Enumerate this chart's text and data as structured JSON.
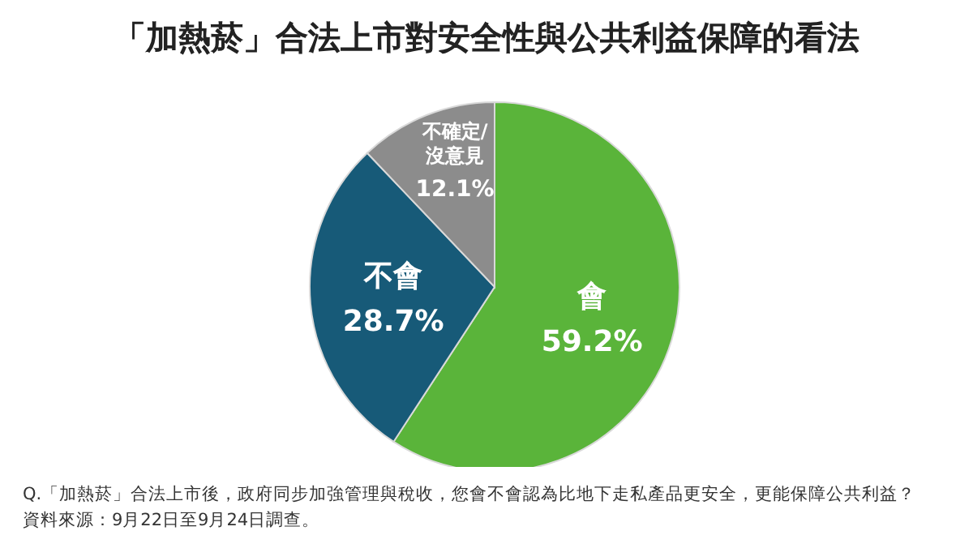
{
  "chart_data": {
    "type": "pie",
    "title": "「加熱菸」合法上市對安全性與公共利益保障的看法",
    "categories": [
      "會",
      "不會",
      "不確定/沒意見"
    ],
    "values": [
      59.2,
      28.7,
      12.1
    ],
    "colors": [
      "#5ab43a",
      "#175a78",
      "#8c8c8c"
    ],
    "value_labels": [
      "59.2%",
      "28.7%",
      "12.1%"
    ],
    "legend": false,
    "annotations": [
      "Q.「加熱菸」合法上市後，政府同步加強管理與稅收，您會不會認為比地下走私產品更安全，更能保障公共利益？",
      "資料來源：9月22日至9月24日調查。"
    ]
  }
}
